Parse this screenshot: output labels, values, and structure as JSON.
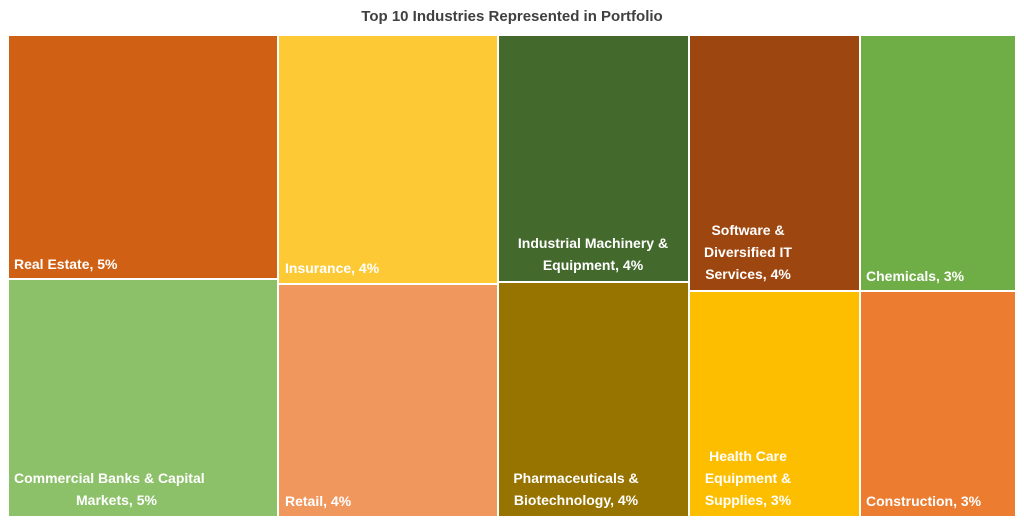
{
  "chart_data": {
    "type": "treemap",
    "title": "Top 10 Industries Represented in Portfolio",
    "items": [
      {
        "label": "Real Estate, 5%",
        "category": "Real Estate",
        "value": 5,
        "color": "#d06013"
      },
      {
        "label": "Commercial Banks & Capital Markets, 5%",
        "category": "Commercial Banks & Capital Markets",
        "value": 5,
        "color": "#8cc16a"
      },
      {
        "label": "Insurance, 4%",
        "category": "Insurance",
        "value": 4,
        "color": "#fdca35"
      },
      {
        "label": "Retail, 4%",
        "category": "Retail",
        "value": 4,
        "color": "#f0975d"
      },
      {
        "label": "Industrial Machinery & Equipment, 4%",
        "category": "Industrial Machinery & Equipment",
        "value": 4,
        "color": "#43692c"
      },
      {
        "label": "Pharmaceuticals & Biotechnology, 4%",
        "category": "Pharmaceuticals & Biotechnology",
        "value": 4,
        "color": "#977300"
      },
      {
        "label": "Software & Diversified IT Services, 4%",
        "category": "Software & Diversified IT Services",
        "value": 4,
        "color": "#9e460f"
      },
      {
        "label": "Health Care Equipment & Supplies, 3%",
        "category": "Health Care Equipment & Supplies",
        "value": 3,
        "color": "#fdbe00"
      },
      {
        "label": "Chemicals, 3%",
        "category": "Chemicals",
        "value": 3,
        "color": "#6fad46"
      },
      {
        "label": "Construction, 3%",
        "category": "Construction",
        "value": 3,
        "color": "#ec7c30"
      }
    ]
  }
}
